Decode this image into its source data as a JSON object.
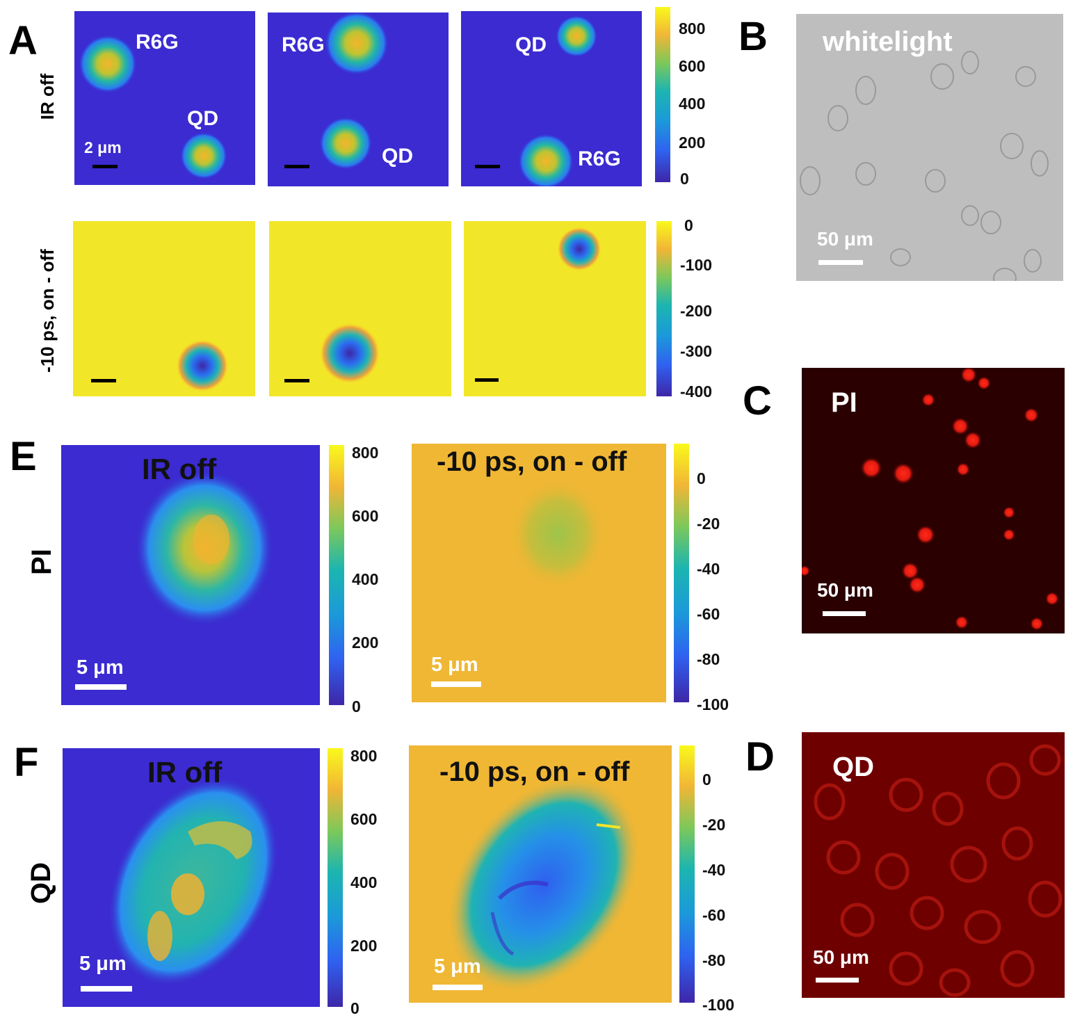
{
  "panel_letters": {
    "a": "A",
    "b": "B",
    "c": "C",
    "d": "D",
    "e": "E",
    "f": "F"
  },
  "panelA": {
    "row_labels": {
      "top": "IR off",
      "bottom": "-10 ps, on - off"
    },
    "labels": {
      "r6g": "R6G",
      "qd": "QD"
    },
    "scale_text": "2 μm",
    "colorbar_top": [
      "800",
      "600",
      "400",
      "200",
      "0"
    ],
    "colorbar_bottom": [
      "0",
      "-100",
      "-200",
      "-300",
      "-400"
    ]
  },
  "panelB": {
    "label": "whitelight",
    "scale_text": "50 μm"
  },
  "panelC": {
    "label": "PI",
    "scale_text": "50 μm"
  },
  "panelD": {
    "label": "QD",
    "scale_text": "50 μm"
  },
  "panelE": {
    "row_label": "PI",
    "title_left": "IR off",
    "title_right": "-10 ps, on - off",
    "scale_text": "5 μm",
    "colorbar_left": [
      "800",
      "600",
      "400",
      "200",
      "0"
    ],
    "colorbar_right": [
      "0",
      "-20",
      "-40",
      "-60",
      "-80",
      "-100"
    ]
  },
  "panelF": {
    "row_label": "QD",
    "title_left": "IR off",
    "title_right": "-10 ps, on - off",
    "scale_text": "5 μm",
    "colorbar_left": [
      "800",
      "600",
      "400",
      "200",
      "0"
    ],
    "colorbar_right": [
      "0",
      "-20",
      "-40",
      "-60",
      "-80",
      "-100"
    ]
  },
  "colors": {
    "parula_low": "#3b2bd0",
    "parula_high": "#f5f01e",
    "fluor_red": "#ff2a1a",
    "gray_field": "#bdbdbd"
  }
}
